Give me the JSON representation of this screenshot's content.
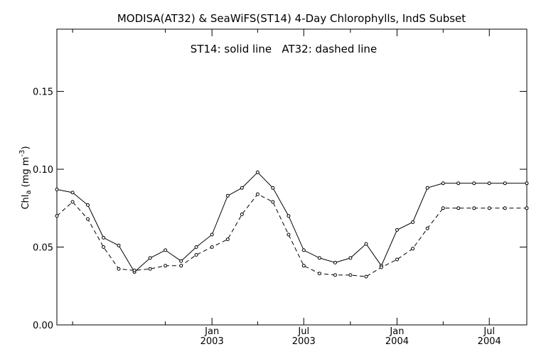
{
  "chart_data": {
    "type": "line",
    "title": "MODISA(AT32) & SeaWiFS(ST14) 4-Day Chlorophylls, IndS Subset",
    "annotation": "ST14: solid line   AT32: dashed line",
    "ylabel": {
      "main": "Chl",
      "sub": "a",
      "unit_prefix": " (mg m",
      "unit_sup": "-3",
      "unit_suffix": ")"
    },
    "ylim": [
      0.0,
      0.19
    ],
    "yticks": [
      {
        "value": 0.0,
        "label": "0.00"
      },
      {
        "value": 0.05,
        "label": "0.05"
      },
      {
        "value": 0.1,
        "label": "0.10"
      },
      {
        "value": 0.15,
        "label": "0.15"
      }
    ],
    "xlim": [
      "2002-03-01",
      "2004-09-13"
    ],
    "xticks": [
      {
        "date": "2003-01-01",
        "month": "Jan",
        "year": "2003"
      },
      {
        "date": "2003-07-01",
        "month": "Jul",
        "year": "2003"
      },
      {
        "date": "2004-01-01",
        "month": "Jan",
        "year": "2004"
      },
      {
        "date": "2004-07-01",
        "month": "Jul",
        "year": "2004"
      }
    ],
    "xminor": [
      "2002-04-01",
      "2002-10-01",
      "2003-04-01",
      "2003-10-01",
      "2004-04-01"
    ],
    "grid": false,
    "x": [
      "2002-03-01",
      "2002-04-01",
      "2002-05-01",
      "2002-06-01",
      "2002-07-01",
      "2002-08-01",
      "2002-09-01",
      "2002-10-01",
      "2002-11-01",
      "2002-12-01",
      "2003-01-01",
      "2003-02-01",
      "2003-03-01",
      "2003-04-01",
      "2003-05-01",
      "2003-06-01",
      "2003-07-01",
      "2003-08-01",
      "2003-09-01",
      "2003-10-01",
      "2003-11-01",
      "2003-12-01",
      "2004-01-01",
      "2004-02-01",
      "2004-03-01",
      "2004-04-01",
      "2004-05-01",
      "2004-06-01",
      "2004-07-01",
      "2004-08-01"
    ],
    "series": [
      {
        "name": "ST14",
        "style": "solid",
        "x": [
          "2002-03-01",
          "2002-04-01",
          "2002-05-01",
          "2002-06-01",
          "2002-07-01",
          "2002-08-01",
          "2002-09-01",
          "2002-10-01",
          "2002-11-01",
          "2002-12-01",
          "2003-01-01",
          "2003-02-01",
          "2003-03-01",
          "2003-04-01",
          "2003-05-01",
          "2003-06-01",
          "2003-07-01",
          "2003-08-01",
          "2003-09-01",
          "2003-10-01",
          "2003-11-01",
          "2003-12-01",
          "2004-01-01",
          "2004-02-01",
          "2004-03-01",
          "2004-04-01",
          "2004-05-01",
          "2004-06-01",
          "2004-07-01",
          "2004-08-01",
          "2004-09-13"
        ],
        "values": [
          0.087,
          0.085,
          0.077,
          0.056,
          0.051,
          0.034,
          0.043,
          0.048,
          0.041,
          0.05,
          0.058,
          0.083,
          0.088,
          0.098,
          0.088,
          0.07,
          0.048,
          0.043,
          0.04,
          0.043,
          0.052,
          0.038,
          0.061,
          0.066,
          0.088,
          0.091,
          0.091,
          0.091,
          0.091,
          0.091,
          0.091
        ]
      },
      {
        "name": "AT32",
        "style": "dashed",
        "x": [
          "2002-03-01",
          "2002-04-01",
          "2002-05-01",
          "2002-06-01",
          "2002-07-01",
          "2002-08-01",
          "2002-09-01",
          "2002-10-01",
          "2002-11-01",
          "2002-12-01",
          "2003-01-01",
          "2003-02-01",
          "2003-03-01",
          "2003-04-01",
          "2003-05-01",
          "2003-06-01",
          "2003-07-01",
          "2003-08-01",
          "2003-09-01",
          "2003-10-01",
          "2003-11-01",
          "2003-12-01",
          "2004-01-01",
          "2004-02-01",
          "2004-03-01",
          "2004-04-01",
          "2004-05-01",
          "2004-06-01",
          "2004-07-01",
          "2004-08-01",
          "2004-09-13"
        ],
        "values": [
          0.07,
          0.079,
          0.068,
          0.05,
          0.036,
          0.035,
          0.036,
          0.038,
          0.038,
          0.045,
          0.05,
          0.055,
          0.071,
          0.084,
          0.079,
          0.058,
          0.038,
          0.033,
          0.032,
          0.032,
          0.031,
          0.037,
          0.042,
          0.049,
          0.062,
          0.075,
          0.075,
          0.075,
          0.075,
          0.075,
          0.075
        ]
      }
    ]
  }
}
